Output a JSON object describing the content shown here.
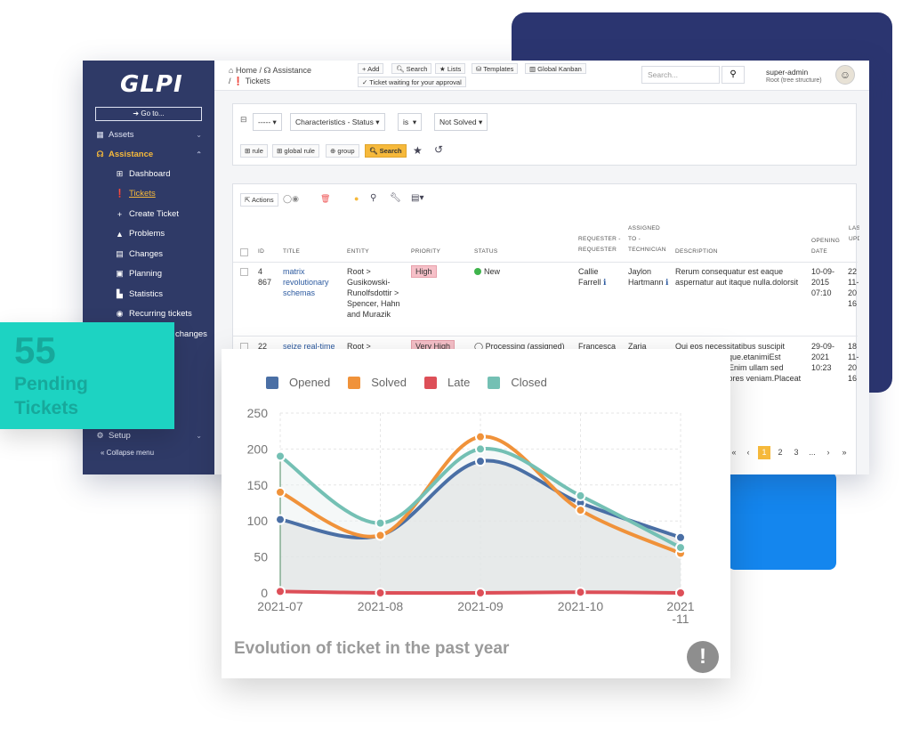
{
  "sidebar": {
    "logo": "GLPI",
    "goto": "Go to...",
    "items": [
      {
        "label": "Assets"
      },
      {
        "label": "Assistance"
      }
    ],
    "subitems": [
      {
        "label": "Dashboard"
      },
      {
        "label": "Tickets"
      },
      {
        "label": "Create Ticket"
      },
      {
        "label": "Problems"
      },
      {
        "label": "Changes"
      },
      {
        "label": "Planning"
      },
      {
        "label": "Statistics"
      },
      {
        "label": "Recurring tickets"
      },
      {
        "label": "changes"
      }
    ],
    "setup": "Setup",
    "collapse": "Collapse menu"
  },
  "topbar": {
    "crumb_home": "Home",
    "crumb_assistance": "Assistance",
    "crumb_tickets": "Tickets",
    "add": "Add",
    "search": "Search",
    "lists": "Lists",
    "templates": "Templates",
    "kanban": "Global Kanban",
    "waiting": "Ticket waiting for your approval",
    "search_placeholder": "Search...",
    "user": "super-admin",
    "user_sub": "Root (tree structure)"
  },
  "filter": {
    "field1": "-----",
    "field2": "Characteristics - Status",
    "op": "is",
    "value": "Not Solved",
    "rule": "rule",
    "global_rule": "global rule",
    "group": "group",
    "search": "Search"
  },
  "table": {
    "actions": "Actions",
    "headers": {
      "id": "ID",
      "title": "TITLE",
      "entity": "ENTITY",
      "priority": "PRIORITY",
      "status": "STATUS",
      "requester": "REQUESTER - REQUESTER",
      "assigned": "ASSIGNED TO - TECHNICIAN",
      "description": "DESCRIPTION",
      "opening": "OPENING DATE",
      "last": "LAST UPD"
    },
    "row1": {
      "id": "4 867",
      "title": "matrix revolutionary schemas",
      "entity": "Root > Gusikowski-Runolfsdottir > Spencer, Hahn and Murazik",
      "priority": "High",
      "status": "New",
      "requester": "Callie Farrell",
      "assigned": "Jaylon Hartmann",
      "description": "Rerum consequatur est eaque aspernatur aut itaque nulla.dolorsit",
      "opening": "10-09-2015 07:10",
      "last": "22 11- 20 16"
    },
    "row2": {
      "id": "22",
      "title": "seize real-time",
      "entity": "Root >",
      "priority": "Very High",
      "status": "Processing (assigned)",
      "requester": "Francesca",
      "assigned": "Zaria",
      "description": "Qui eos necessitatibus suscipit quaerat rerum que.etanimiEst m.Voluptatem .Enim ullam sed onsequatur dolores veniam.Placeat sint esse quis",
      "opening": "29-09-2021 10:23",
      "last": "18 11- 20 16"
    },
    "pages": [
      "1",
      "2",
      "3",
      "..."
    ]
  },
  "pending": {
    "count": "55",
    "label": "Pending Tickets"
  },
  "chart_title": "Evolution of ticket in the past year",
  "chart_data": {
    "type": "line",
    "categories": [
      "2021-07",
      "2021-08",
      "2021-09",
      "2021-10",
      "2021-11"
    ],
    "series": [
      {
        "name": "Opened",
        "values": [
          102,
          80,
          183,
          125,
          77
        ],
        "color": "#4a6fa5"
      },
      {
        "name": "Solved",
        "values": [
          140,
          80,
          217,
          115,
          55
        ],
        "color": "#f0923a"
      },
      {
        "name": "Late",
        "values": [
          2,
          0,
          0,
          1,
          0
        ],
        "color": "#dd4f58"
      },
      {
        "name": "Closed",
        "values": [
          190,
          97,
          200,
          135,
          63
        ],
        "color": "#74c0b4"
      }
    ],
    "ylim": [
      0,
      250
    ],
    "yticks": [
      "0",
      "50",
      "100",
      "150",
      "200",
      "250"
    ],
    "xlabels": [
      "2021-07",
      "2021-08",
      "2021-09",
      "2021-10",
      "2021\n-11"
    ],
    "grid": true,
    "legend": "top-left"
  }
}
